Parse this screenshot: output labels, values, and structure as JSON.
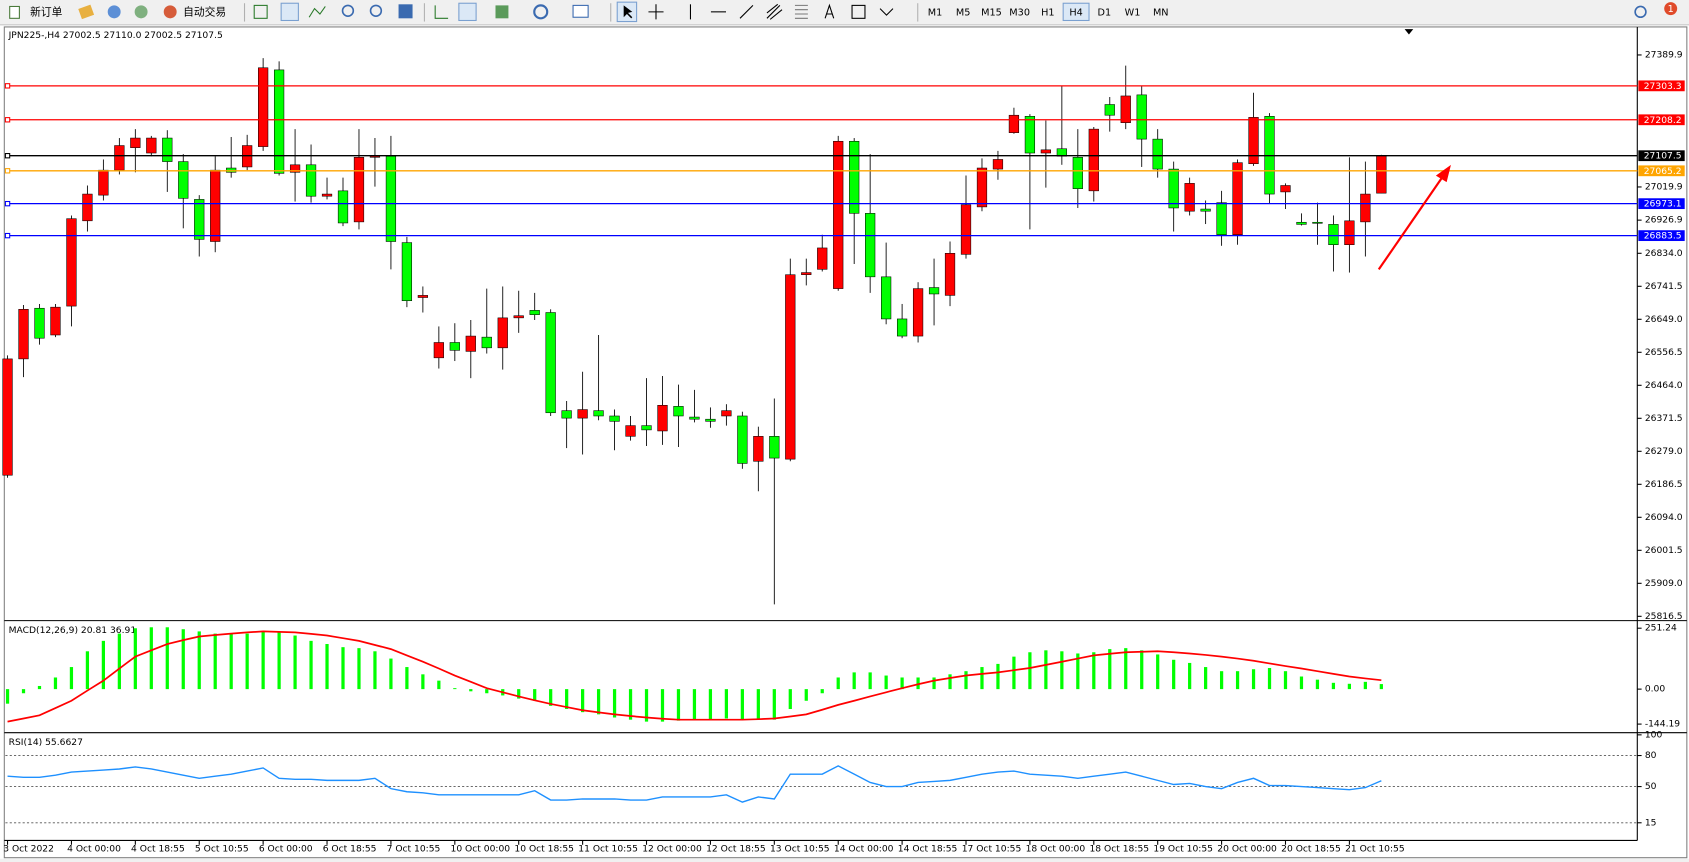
{
  "toolbar": {
    "new_order": "新订单",
    "auto_trading": "自动交易",
    "timeframes": [
      "M1",
      "M5",
      "M15",
      "M30",
      "H1",
      "H4",
      "D1",
      "W1",
      "MN"
    ],
    "active_timeframe": 5,
    "notifications": 1
  },
  "chart_data": [
    {
      "type": "candlestick",
      "title": "JPN225-,H4  27002.5 27110.0 27002.5 27107.5",
      "categories": [
        "3 Oct 2022",
        null,
        null,
        null,
        "4 Oct 00:00",
        null,
        null,
        null,
        "4 Oct 18:55",
        null,
        null,
        null,
        "5 Oct 10:55",
        null,
        null,
        null,
        "6 Oct 00:00",
        null,
        null,
        null,
        "6 Oct 18:55",
        null,
        null,
        null,
        "7 Oct 10:55",
        null,
        null,
        null,
        "10 Oct 00:00",
        null,
        null,
        null,
        "10 Oct 18:55",
        null,
        null,
        null,
        "11 Oct 10:55",
        null,
        null,
        null,
        "12 Oct 00:00",
        null,
        null,
        null,
        "12 Oct 18:55",
        null,
        null,
        null,
        "13 Oct 10:55",
        null,
        null,
        null,
        "14 Oct 00:00",
        null,
        null,
        null,
        "14 Oct 18:55",
        null,
        null,
        null,
        "17 Oct 10:55",
        null,
        null,
        null,
        "18 Oct 00:00",
        null,
        null,
        null,
        "18 Oct 18:55",
        null,
        null,
        null,
        "19 Oct 10:55",
        null,
        null,
        null,
        "20 Oct 00:00",
        null,
        null,
        null,
        "20 Oct 18:55",
        null,
        null,
        null,
        "21 Oct 10:55",
        null,
        null
      ],
      "open": [
        26212,
        26538,
        26680,
        26605,
        26686,
        26925,
        26997,
        27067,
        27130,
        27115,
        27157,
        27091,
        26985,
        26867,
        27073,
        27076,
        27133,
        27348,
        27061,
        27082,
        26994,
        27009,
        26922,
        27103,
        27106,
        26864,
        26710,
        26541,
        26584,
        26559,
        26599,
        26569,
        26653,
        26674,
        26668,
        26393,
        26372,
        26393,
        26378,
        26321,
        26351,
        26336,
        26405,
        26375,
        26369,
        26378,
        26378,
        26251,
        26321,
        26257,
        26774,
        26789,
        26735,
        27148,
        26946,
        26768,
        26650,
        26602,
        26738,
        26716,
        26831,
        26964,
        27070,
        27172,
        27218,
        27115,
        27127,
        27103,
        27009,
        27251,
        27200,
        27278,
        27154,
        27070,
        26952,
        26958,
        26976,
        26886,
        27085,
        27218,
        27006,
        26921,
        26921,
        26915,
        26858,
        26922,
        27002.5
      ],
      "high": [
        26548,
        26689,
        26692,
        26692,
        26940,
        27024,
        27097,
        27157,
        27182,
        27163,
        27179,
        27112,
        26997,
        27106,
        27160,
        27166,
        27381,
        27372,
        27182,
        27139,
        27046,
        27046,
        27182,
        27157,
        27163,
        26880,
        26741,
        26629,
        26638,
        26647,
        26735,
        26741,
        26729,
        26723,
        26677,
        26420,
        26502,
        26605,
        26396,
        26378,
        26484,
        26490,
        26466,
        26451,
        26402,
        26411,
        26390,
        26348,
        26427,
        26819,
        26819,
        26886,
        27163,
        27157,
        27112,
        26864,
        26692,
        26753,
        26819,
        26867,
        27052,
        27100,
        27121,
        27242,
        27224,
        27206,
        27302,
        27182,
        27188,
        27272,
        27360,
        27302,
        27182,
        27091,
        27046,
        26982,
        27009,
        27097,
        27284,
        27227,
        27030,
        26946,
        26976,
        26940,
        27103,
        27091,
        27110.0
      ],
      "low": [
        26205,
        26487,
        26578,
        26599,
        26629,
        26895,
        26982,
        27055,
        27061,
        27106,
        27006,
        26904,
        26825,
        26837,
        27046,
        27067,
        27121,
        27052,
        26979,
        26976,
        26985,
        26910,
        26901,
        27021,
        26789,
        26683,
        26668,
        26511,
        26532,
        26484,
        26553,
        26508,
        26611,
        26647,
        26378,
        26288,
        26270,
        26366,
        26282,
        26309,
        26294,
        26297,
        26291,
        26360,
        26345,
        26351,
        26230,
        26167,
        25850,
        26251,
        26744,
        26783,
        26729,
        26804,
        26723,
        26635,
        26596,
        26584,
        26632,
        26686,
        26819,
        26952,
        27040,
        27169,
        26901,
        27018,
        27082,
        26961,
        26979,
        27175,
        27182,
        27076,
        27046,
        26895,
        26940,
        26916,
        26855,
        26858,
        27079,
        26973,
        26958,
        26912,
        26858,
        26783,
        26780,
        26825,
        27002.5
      ],
      "close": [
        26538,
        26677,
        26596,
        26683,
        26931,
        27000,
        27067,
        27136,
        27157,
        27157,
        27091,
        26988,
        26873,
        27067,
        27061,
        27136,
        27354,
        27058,
        27082,
        26994,
        27000,
        26919,
        27103,
        27106,
        26867,
        26701,
        26716,
        26584,
        26562,
        26602,
        26569,
        26653,
        26659,
        26662,
        26387,
        26372,
        26396,
        26378,
        26363,
        26351,
        26339,
        26408,
        26378,
        26369,
        26363,
        26393,
        26245,
        26321,
        26260,
        26774,
        26780,
        26849,
        27148,
        26946,
        26768,
        26650,
        26602,
        26735,
        26720,
        26834,
        26970,
        27073,
        27097,
        27221,
        27115,
        27124,
        27106,
        27015,
        27182,
        27221,
        27275,
        27154,
        27070,
        26961,
        27030,
        26952,
        26886,
        27088,
        27215,
        27000,
        27024,
        26915,
        26918,
        26858,
        26925,
        27000,
        27107.5
      ],
      "colors": {
        "up": "#ff0000",
        "down": "#00ff00",
        "wick": "#000000"
      },
      "ylim": [
        25807.4,
        27465.4
      ],
      "yticks": [
        27389.9,
        27019.9,
        26926.9,
        {
          "value": 26834,
          "label": "26834.0"
        },
        26741.5,
        {
          "value": 26649,
          "label": "26649.0"
        },
        26556.5,
        {
          "value": 26464,
          "label": "26464.0"
        },
        26371.5,
        {
          "value": 26279,
          "label": "26279.0"
        },
        26186.5,
        {
          "value": 26094,
          "label": "26094.0"
        },
        26001.5,
        {
          "value": 25909,
          "label": "25909.0"
        },
        25816.5
      ],
      "levels": [
        {
          "value": 27303.3,
          "color": "#ff0000"
        },
        {
          "value": 27208.2,
          "color": "#ff0000"
        },
        {
          "value": 27107.5,
          "color": "#000000"
        },
        {
          "value": 27065.2,
          "color": "#ffa500"
        },
        {
          "value": 26973.1,
          "color": "#0000ff"
        },
        {
          "value": 26883.5,
          "color": "#0000ff"
        }
      ]
    },
    {
      "type": "macd",
      "title": "MACD(12,26,9) 20.81 36.91",
      "histogram": {
        "color": "#00ff00",
        "values": [
          -60,
          -17,
          13,
          48,
          91,
          156,
          199,
          229,
          251,
          255,
          255,
          247,
          238,
          229,
          229,
          229,
          238,
          234,
          221,
          199,
          186,
          173,
          169,
          156,
          126,
          91,
          61,
          35,
          4,
          -9,
          -17,
          -26,
          -39,
          -48,
          -69,
          -82,
          -95,
          -104,
          -117,
          -126,
          -134,
          -134,
          -130,
          -126,
          -126,
          -121,
          -126,
          -126,
          -126,
          -82,
          -48,
          -17,
          48,
          69,
          69,
          56,
          48,
          48,
          48,
          61,
          74,
          91,
          104,
          134,
          152,
          160,
          156,
          147,
          152,
          165,
          169,
          160,
          143,
          121,
          108,
          91,
          74,
          74,
          82,
          87,
          74,
          52,
          39,
          26,
          22,
          30,
          20.81
        ]
      },
      "signal": {
        "color": "#ff0000",
        "values": [
          -134,
          -121,
          -108,
          -78,
          -48,
          -6,
          35,
          85,
          134,
          160,
          186,
          202,
          217,
          223,
          229,
          234,
          238,
          236,
          234,
          228,
          221,
          210,
          199,
          182,
          165,
          139,
          113,
          85,
          56,
          30,
          4,
          -13,
          -30,
          -46,
          -61,
          -74,
          -87,
          -96,
          -104,
          -111,
          -117,
          -122,
          -126,
          -126,
          -126,
          -126,
          -126,
          -124,
          -121,
          -113,
          -104,
          -85,
          -65,
          -48,
          -30,
          -13,
          4,
          20,
          35,
          46,
          56,
          63,
          69,
          78,
          87,
          100,
          113,
          126,
          139,
          146,
          152,
          154,
          156,
          152,
          147,
          141,
          134,
          126,
          117,
          106,
          95,
          85,
          74,
          63,
          52,
          44,
          36.91
        ]
      },
      "ylim": [
        -170.8,
        273.5
      ],
      "yticks": [
        251.24,
        {
          "value": 0,
          "label": "0.00"
        },
        -144.19
      ]
    },
    {
      "type": "line",
      "title": "RSI(14) 55.6627",
      "color": "#1e90ff",
      "values": [
        60,
        59,
        59,
        61,
        64,
        65,
        66,
        67,
        69,
        67,
        64,
        61,
        58,
        60,
        62,
        65,
        68,
        58,
        57,
        57,
        56,
        56,
        56,
        58,
        48,
        45,
        44,
        42,
        42,
        42,
        42,
        42,
        42,
        46,
        37,
        37,
        38,
        38,
        38,
        37,
        37,
        40,
        40,
        40,
        40,
        42,
        35,
        40,
        38,
        62,
        62,
        62,
        70,
        62,
        54,
        50,
        50,
        54,
        55,
        56,
        59,
        62,
        64,
        65,
        62,
        61,
        60,
        58,
        60,
        62,
        64,
        60,
        56,
        52,
        53,
        50,
        48,
        54,
        58,
        51,
        51,
        50,
        49,
        48,
        47,
        49,
        55.6627
      ],
      "ylim": [
        0,
        100
      ],
      "yticks": [
        100,
        80,
        50,
        15
      ],
      "levels": [
        80,
        50,
        15
      ]
    }
  ]
}
